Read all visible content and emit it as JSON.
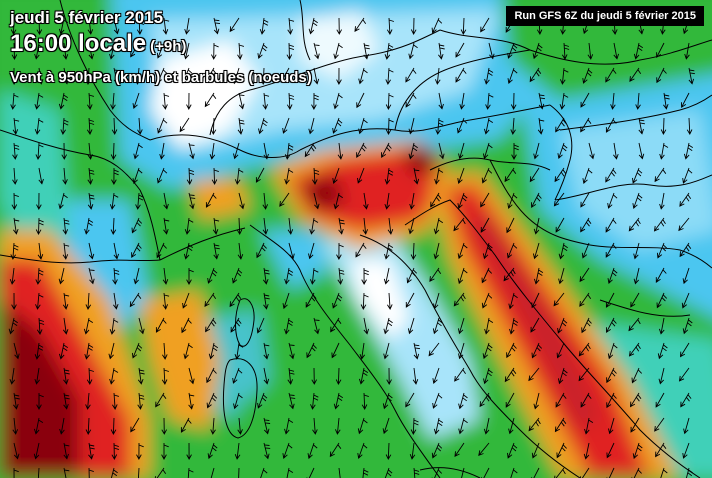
{
  "header": {
    "date": "jeudi 5 février 2015",
    "time": "16:00 locale",
    "offset": "(+9h)",
    "variable": "Vent à 950hPa (km/h) et barbules (noeuds)"
  },
  "run_label": "Run GFS 6Z du jeudi 5 février 2015",
  "colors": {
    "calm": "#ffffff",
    "light": "#a8e4fa",
    "moderate": "#4cc6f0",
    "fresh": "#3fd0b8",
    "strong": "#31b83a",
    "very_strong": "#f0a020",
    "gale": "#e02020",
    "storm": "#8a0010",
    "borders": "#000000"
  }
}
